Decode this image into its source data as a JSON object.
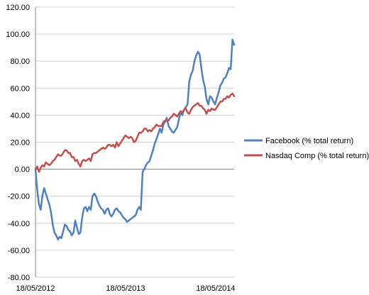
{
  "chart_data": {
    "type": "line",
    "title": "",
    "xlabel": "",
    "ylabel": "",
    "ylim": [
      -80,
      120
    ],
    "y_ticks": [
      "-80.00",
      "-60.00",
      "-40.00",
      "-20.00",
      "0.00",
      "20.00",
      "40.00",
      "60.00",
      "80.00",
      "100.00",
      "120.00"
    ],
    "x_ticks": [
      "18/05/2012",
      "18/05/2013",
      "18/05/2014"
    ],
    "x_range": [
      "18/05/2012",
      "01/08/2014"
    ],
    "grid": true,
    "legend_position": "right",
    "series": [
      {
        "name": "Facebook (% total return)",
        "color": "#4F81BD",
        "points": [
          [
            "18/05/2012",
            0
          ],
          [
            "25/05/2012",
            -15
          ],
          [
            "01/06/2012",
            -26
          ],
          [
            "08/06/2012",
            -30
          ],
          [
            "15/06/2012",
            -20
          ],
          [
            "22/06/2012",
            -14
          ],
          [
            "29/06/2012",
            -18
          ],
          [
            "06/07/2012",
            -22
          ],
          [
            "13/07/2012",
            -26
          ],
          [
            "20/07/2012",
            -32
          ],
          [
            "27/07/2012",
            -41
          ],
          [
            "03/08/2012",
            -47
          ],
          [
            "10/08/2012",
            -49
          ],
          [
            "17/08/2012",
            -52
          ],
          [
            "24/08/2012",
            -50
          ],
          [
            "31/08/2012",
            -51
          ],
          [
            "07/09/2012",
            -46
          ],
          [
            "14/09/2012",
            -41
          ],
          [
            "21/09/2012",
            -42
          ],
          [
            "28/09/2012",
            -45
          ],
          [
            "05/10/2012",
            -46
          ],
          [
            "12/10/2012",
            -49
          ],
          [
            "19/10/2012",
            -47
          ],
          [
            "26/10/2012",
            -38
          ],
          [
            "02/11/2012",
            -43
          ],
          [
            "09/11/2012",
            -48
          ],
          [
            "16/11/2012",
            -47
          ],
          [
            "23/11/2012",
            -36
          ],
          [
            "30/11/2012",
            -29
          ],
          [
            "07/12/2012",
            -28
          ],
          [
            "14/12/2012",
            -31
          ],
          [
            "21/12/2012",
            -28
          ],
          [
            "28/12/2012",
            -30
          ],
          [
            "04/01/2013",
            -20
          ],
          [
            "11/01/2013",
            -18
          ],
          [
            "18/01/2013",
            -20
          ],
          [
            "25/01/2013",
            -24
          ],
          [
            "01/02/2013",
            -27
          ],
          [
            "08/02/2013",
            -29
          ],
          [
            "15/02/2013",
            -30
          ],
          [
            "22/02/2013",
            -33
          ],
          [
            "01/03/2013",
            -30
          ],
          [
            "08/03/2013",
            -29
          ],
          [
            "15/03/2013",
            -33
          ],
          [
            "22/03/2013",
            -35
          ],
          [
            "29/03/2013",
            -33
          ],
          [
            "05/04/2013",
            -30
          ],
          [
            "12/04/2013",
            -29
          ],
          [
            "19/04/2013",
            -31
          ],
          [
            "26/04/2013",
            -32
          ],
          [
            "03/05/2013",
            -34
          ],
          [
            "10/05/2013",
            -36
          ],
          [
            "17/05/2013",
            -37
          ],
          [
            "24/05/2013",
            -39
          ],
          [
            "31/05/2013",
            -38
          ],
          [
            "07/06/2013",
            -37
          ],
          [
            "14/06/2013",
            -36
          ],
          [
            "21/06/2013",
            -35
          ],
          [
            "28/06/2013",
            -34
          ],
          [
            "05/07/2013",
            -30
          ],
          [
            "12/07/2013",
            -28
          ],
          [
            "19/07/2013",
            -30
          ],
          [
            "26/07/2013",
            -2
          ],
          [
            "02/08/2013",
            0
          ],
          [
            "09/08/2013",
            3
          ],
          [
            "16/08/2013",
            5
          ],
          [
            "23/08/2013",
            6
          ],
          [
            "30/08/2013",
            10
          ],
          [
            "06/09/2013",
            14
          ],
          [
            "13/09/2013",
            19
          ],
          [
            "20/09/2013",
            22
          ],
          [
            "27/09/2013",
            26
          ],
          [
            "04/10/2013",
            30
          ],
          [
            "11/10/2013",
            27
          ],
          [
            "18/10/2013",
            33
          ],
          [
            "25/10/2013",
            35
          ],
          [
            "01/11/2013",
            38
          ],
          [
            "08/11/2013",
            32
          ],
          [
            "15/11/2013",
            30
          ],
          [
            "22/11/2013",
            28
          ],
          [
            "29/11/2013",
            27
          ],
          [
            "06/12/2013",
            29
          ],
          [
            "13/12/2013",
            31
          ],
          [
            "20/12/2013",
            37
          ],
          [
            "27/12/2013",
            42
          ],
          [
            "03/01/2014",
            40
          ],
          [
            "10/01/2014",
            44
          ],
          [
            "17/01/2014",
            46
          ],
          [
            "24/01/2014",
            48
          ],
          [
            "31/01/2014",
            65
          ],
          [
            "07/02/2014",
            70
          ],
          [
            "14/02/2014",
            73
          ],
          [
            "21/02/2014",
            80
          ],
          [
            "28/02/2014",
            84
          ],
          [
            "07/03/2014",
            87
          ],
          [
            "14/03/2014",
            85
          ],
          [
            "21/03/2014",
            75
          ],
          [
            "28/03/2014",
            66
          ],
          [
            "04/04/2014",
            61
          ],
          [
            "11/04/2014",
            52
          ],
          [
            "18/04/2014",
            48
          ],
          [
            "25/04/2014",
            54
          ],
          [
            "02/05/2014",
            53
          ],
          [
            "09/05/2014",
            50
          ],
          [
            "16/05/2014",
            48
          ],
          [
            "23/05/2014",
            53
          ],
          [
            "30/05/2014",
            57
          ],
          [
            "06/06/2014",
            62
          ],
          [
            "13/06/2014",
            64
          ],
          [
            "20/06/2014",
            67
          ],
          [
            "27/06/2014",
            68
          ],
          [
            "04/07/2014",
            71
          ],
          [
            "11/07/2014",
            75
          ],
          [
            "18/07/2014",
            74
          ],
          [
            "25/07/2014",
            96
          ],
          [
            "01/08/2014",
            92
          ]
        ]
      },
      {
        "name": "Nasdaq Comp (% total return)",
        "color": "#C0504D",
        "points": [
          [
            "18/05/2012",
            0
          ],
          [
            "25/05/2012",
            2
          ],
          [
            "01/06/2012",
            -2
          ],
          [
            "08/06/2012",
            1
          ],
          [
            "15/06/2012",
            3
          ],
          [
            "22/06/2012",
            2
          ],
          [
            "29/06/2012",
            5
          ],
          [
            "06/07/2012",
            4
          ],
          [
            "13/07/2012",
            3
          ],
          [
            "20/07/2012",
            4
          ],
          [
            "27/07/2012",
            6
          ],
          [
            "03/08/2012",
            7
          ],
          [
            "10/08/2012",
            9
          ],
          [
            "17/08/2012",
            11
          ],
          [
            "24/08/2012",
            10
          ],
          [
            "31/08/2012",
            10
          ],
          [
            "07/09/2012",
            12
          ],
          [
            "14/09/2012",
            14
          ],
          [
            "21/09/2012",
            14
          ],
          [
            "28/09/2012",
            12
          ],
          [
            "05/10/2012",
            12
          ],
          [
            "12/10/2012",
            9
          ],
          [
            "19/10/2012",
            9
          ],
          [
            "26/10/2012",
            6
          ],
          [
            "02/11/2012",
            7
          ],
          [
            "09/11/2012",
            4
          ],
          [
            "16/11/2012",
            2
          ],
          [
            "23/11/2012",
            6
          ],
          [
            "30/11/2012",
            7
          ],
          [
            "07/12/2012",
            6
          ],
          [
            "14/12/2012",
            7
          ],
          [
            "21/12/2012",
            8
          ],
          [
            "28/12/2012",
            6
          ],
          [
            "04/01/2013",
            11
          ],
          [
            "11/01/2013",
            12
          ],
          [
            "18/01/2013",
            12
          ],
          [
            "25/01/2013",
            13
          ],
          [
            "01/02/2013",
            14
          ],
          [
            "08/02/2013",
            15
          ],
          [
            "15/02/2013",
            16
          ],
          [
            "22/02/2013",
            15
          ],
          [
            "01/03/2013",
            16
          ],
          [
            "08/03/2013",
            18
          ],
          [
            "15/03/2013",
            18
          ],
          [
            "22/03/2013",
            17
          ],
          [
            "29/03/2013",
            18
          ],
          [
            "05/04/2013",
            16
          ],
          [
            "12/04/2013",
            20
          ],
          [
            "19/04/2013",
            17
          ],
          [
            "26/04/2013",
            19
          ],
          [
            "03/05/2013",
            21
          ],
          [
            "10/05/2013",
            23
          ],
          [
            "17/05/2013",
            25
          ],
          [
            "24/05/2013",
            24
          ],
          [
            "31/05/2013",
            23
          ],
          [
            "07/06/2013",
            24
          ],
          [
            "14/06/2013",
            23
          ],
          [
            "21/06/2013",
            20
          ],
          [
            "28/06/2013",
            21
          ],
          [
            "05/07/2013",
            24
          ],
          [
            "12/07/2013",
            27
          ],
          [
            "19/07/2013",
            27
          ],
          [
            "26/07/2013",
            28
          ],
          [
            "02/08/2013",
            30
          ],
          [
            "09/08/2013",
            30
          ],
          [
            "16/08/2013",
            28
          ],
          [
            "23/08/2013",
            29
          ],
          [
            "30/08/2013",
            28
          ],
          [
            "06/09/2013",
            30
          ],
          [
            "13/09/2013",
            31
          ],
          [
            "20/09/2013",
            33
          ],
          [
            "27/09/2013",
            32
          ],
          [
            "04/10/2013",
            32
          ],
          [
            "11/10/2013",
            32
          ],
          [
            "18/10/2013",
            35
          ],
          [
            "25/10/2013",
            36
          ],
          [
            "01/11/2013",
            36
          ],
          [
            "08/11/2013",
            36
          ],
          [
            "15/11/2013",
            38
          ],
          [
            "22/11/2013",
            39
          ],
          [
            "29/11/2013",
            41
          ],
          [
            "06/12/2013",
            40
          ],
          [
            "13/12/2013",
            39
          ],
          [
            "20/12/2013",
            41
          ],
          [
            "27/12/2013",
            43
          ],
          [
            "03/01/2014",
            42
          ],
          [
            "10/01/2014",
            44
          ],
          [
            "17/01/2014",
            45
          ],
          [
            "24/01/2014",
            42
          ],
          [
            "31/01/2014",
            41
          ],
          [
            "07/02/2014",
            44
          ],
          [
            "14/02/2014",
            46
          ],
          [
            "21/02/2014",
            47
          ],
          [
            "28/02/2014",
            48
          ],
          [
            "07/03/2014",
            49
          ],
          [
            "14/03/2014",
            47
          ],
          [
            "21/03/2014",
            47
          ],
          [
            "28/03/2014",
            45
          ],
          [
            "04/04/2014",
            44
          ],
          [
            "11/04/2014",
            41
          ],
          [
            "18/04/2014",
            44
          ],
          [
            "25/04/2014",
            43
          ],
          [
            "02/05/2014",
            45
          ],
          [
            "09/05/2014",
            44
          ],
          [
            "16/05/2014",
            44
          ],
          [
            "23/05/2014",
            46
          ],
          [
            "30/05/2014",
            48
          ],
          [
            "06/06/2014",
            50
          ],
          [
            "13/06/2014",
            50
          ],
          [
            "20/06/2014",
            52
          ],
          [
            "27/06/2014",
            52
          ],
          [
            "04/07/2014",
            54
          ],
          [
            "11/07/2014",
            53
          ],
          [
            "18/07/2014",
            55
          ],
          [
            "25/07/2014",
            56
          ],
          [
            "01/08/2014",
            54
          ]
        ]
      }
    ]
  }
}
